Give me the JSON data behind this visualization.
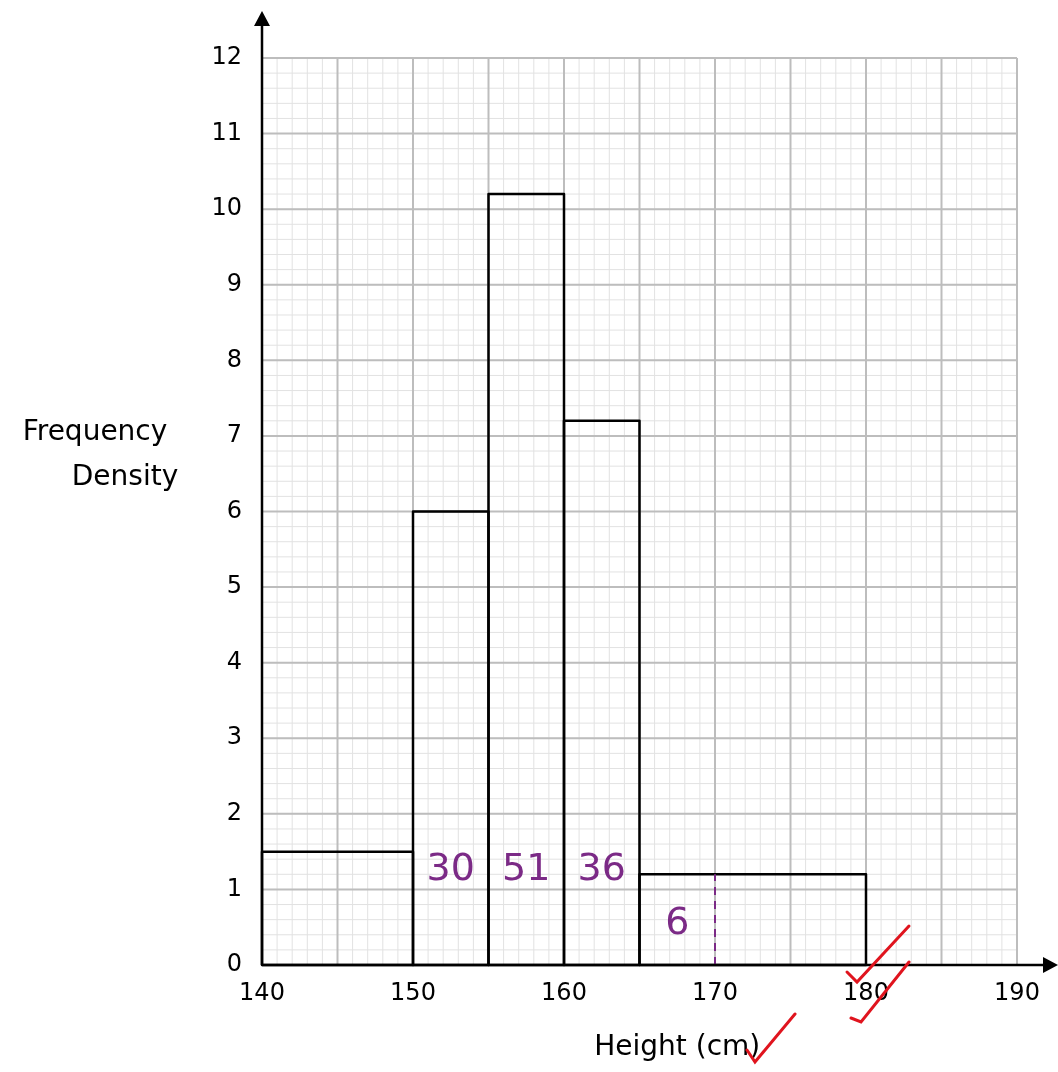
{
  "chart_data": {
    "type": "histogram",
    "xlabel": "Height (cm)",
    "ylabel": "Frequency Density",
    "bins": [
      140,
      150,
      155,
      160,
      165,
      180
    ],
    "values": [
      1.5,
      6,
      10.2,
      7.2,
      1.2
    ],
    "color": "#000000",
    "xlim": [
      140,
      190
    ],
    "xticks": [
      140,
      150,
      160,
      170,
      180,
      190
    ],
    "ylim": [
      0,
      12
    ],
    "yticks": [
      0,
      1,
      2,
      3,
      4,
      5,
      6,
      7,
      8,
      9,
      10,
      11,
      12
    ],
    "grid": true,
    "ref_lines": [
      {
        "axis": "x",
        "value": 170,
        "color": "#7b2a86",
        "line_style": "dashed"
      }
    ],
    "annotations": [
      "30",
      "51",
      "36",
      "6"
    ]
  }
}
